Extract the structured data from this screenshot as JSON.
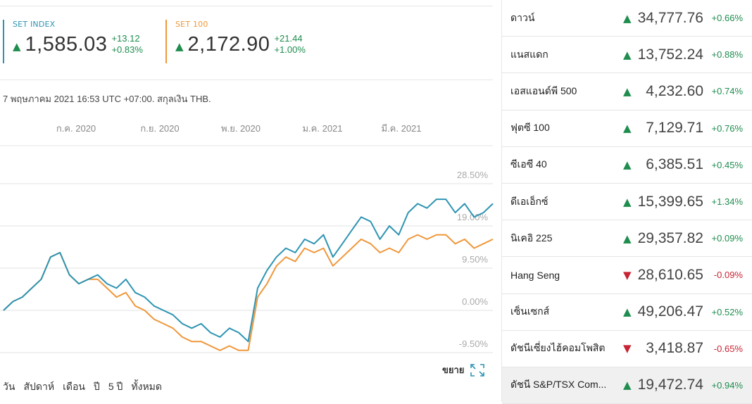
{
  "quotes": [
    {
      "name": "SET INDEX",
      "value": "1,585.03",
      "change": "+13.12",
      "percent": "+0.83%",
      "color": "#2e94b2",
      "arrow": "▲"
    },
    {
      "name": "SET 100",
      "value": "2,172.90",
      "change": "+21.44",
      "percent": "+1.00%",
      "color": "#f0973a",
      "arrow": "▲"
    }
  ],
  "timestamp": "7 พฤษภาคม 2021 16:53 UTC +07:00. สกุลเงิน THB.",
  "chart_data": {
    "type": "line",
    "x_ticks": [
      "ก.ค. 2020",
      "ก.ย. 2020",
      "พ.ย. 2020",
      "ม.ค. 2021",
      "มี.ค. 2021"
    ],
    "y_ticks": [
      "28.50%",
      "19.00%",
      "9.50%",
      "0.00%",
      "-9.50%"
    ],
    "ylim": [
      -9.5,
      28.5
    ],
    "series": [
      {
        "name": "SET INDEX",
        "color": "#2e94b2",
        "values": [
          0,
          2,
          3,
          5,
          7,
          12,
          13,
          8,
          6,
          7,
          8,
          6,
          5,
          7,
          4,
          3,
          1,
          0,
          -1,
          -3,
          -4,
          -3,
          -5,
          -6,
          -4,
          -5,
          -7,
          5,
          9,
          12,
          14,
          13,
          16,
          15,
          17,
          12,
          15,
          18,
          21,
          20,
          16,
          19,
          17,
          22,
          24,
          23,
          25,
          25,
          22,
          24,
          21,
          22,
          24
        ]
      },
      {
        "name": "SET 100",
        "color": "#f0973a",
        "values": [
          0,
          2,
          3,
          5,
          7,
          12,
          13,
          8,
          6,
          7,
          7,
          5,
          3,
          4,
          1,
          0,
          -2,
          -3,
          -4,
          -6,
          -7,
          -7,
          -8,
          -9,
          -8,
          -9,
          -9,
          3,
          6,
          10,
          12,
          11,
          14,
          13,
          14,
          10,
          12,
          14,
          16,
          15,
          13,
          14,
          13,
          16,
          17,
          16,
          17,
          17,
          15,
          16,
          14,
          15,
          16
        ]
      }
    ]
  },
  "expand": {
    "label": "ขยาย",
    "icon": "expand-icon"
  },
  "ranges": [
    "วัน",
    "สัปดาห์",
    "เดือน",
    "ปี",
    "5 ปี",
    "ทั้งหมด"
  ],
  "markets": [
    {
      "name": "ดาวน์",
      "value": "34,777.76",
      "change": "+0.66%",
      "dir": "up"
    },
    {
      "name": "แนสแดก",
      "value": "13,752.24",
      "change": "+0.88%",
      "dir": "up"
    },
    {
      "name": "เอสแอนด์พี 500",
      "value": "4,232.60",
      "change": "+0.74%",
      "dir": "up"
    },
    {
      "name": "ฟุตซี 100",
      "value": "7,129.71",
      "change": "+0.76%",
      "dir": "up"
    },
    {
      "name": "ซีเอซี 40",
      "value": "6,385.51",
      "change": "+0.45%",
      "dir": "up"
    },
    {
      "name": "ดีเอเอ็กซ์",
      "value": "15,399.65",
      "change": "+1.34%",
      "dir": "up"
    },
    {
      "name": "นิเคอิ 225",
      "value": "29,357.82",
      "change": "+0.09%",
      "dir": "up"
    },
    {
      "name": "Hang Seng",
      "value": "28,610.65",
      "change": "-0.09%",
      "dir": "down"
    },
    {
      "name": "เซ็นเซกส์",
      "value": "49,206.47",
      "change": "+0.52%",
      "dir": "up"
    },
    {
      "name": "ดัชนีเซี่ยงไฮ้คอมโพสิต",
      "value": "3,418.87",
      "change": "-0.65%",
      "dir": "down"
    },
    {
      "name": "ดัชนี S&P/TSX Com...",
      "value": "19,472.74",
      "change": "+0.94%",
      "dir": "up",
      "selected": true
    }
  ]
}
